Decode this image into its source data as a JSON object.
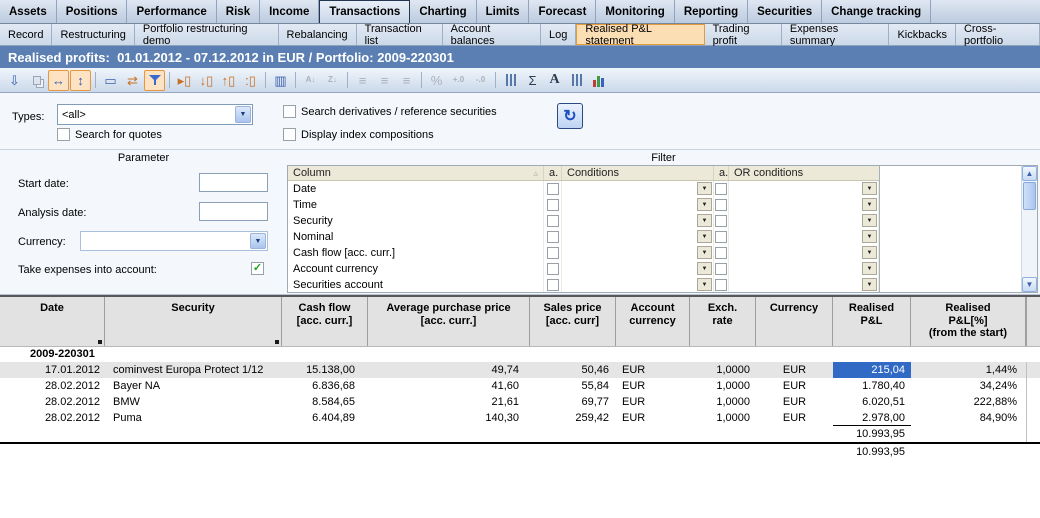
{
  "menu_bar": {
    "items": [
      {
        "label": "Assets",
        "selected": false
      },
      {
        "label": "Positions",
        "selected": false
      },
      {
        "label": "Performance",
        "selected": false
      },
      {
        "label": "Risk",
        "selected": false
      },
      {
        "label": "Income",
        "selected": false
      },
      {
        "label": "Transactions",
        "selected": true
      },
      {
        "label": "Charting",
        "selected": false
      },
      {
        "label": "Limits",
        "selected": false
      },
      {
        "label": "Forecast",
        "selected": false
      },
      {
        "label": "Monitoring",
        "selected": false
      },
      {
        "label": "Reporting",
        "selected": false
      },
      {
        "label": "Securities",
        "selected": false
      },
      {
        "label": "Change tracking",
        "selected": false
      }
    ]
  },
  "subtab_bar": {
    "items": [
      {
        "label": "Record",
        "selected": false
      },
      {
        "label": "Restructuring",
        "selected": false
      },
      {
        "label": "Portfolio restructuring demo",
        "selected": false
      },
      {
        "label": "Rebalancing",
        "selected": false
      },
      {
        "label": "Transaction list",
        "selected": false
      },
      {
        "label": "Account balances",
        "selected": false
      },
      {
        "label": "Log",
        "selected": false
      },
      {
        "label": "Realised P&L statement",
        "selected": true
      },
      {
        "label": "Trading profit",
        "selected": false
      },
      {
        "label": "Expenses summary",
        "selected": false
      },
      {
        "label": "Kickbacks",
        "selected": false
      },
      {
        "label": "Cross-portfolio",
        "selected": false
      }
    ]
  },
  "title_bar": {
    "text": "Realised profits:  01.01.2012 - 07.12.2012 in EUR / Portfolio: 2009-220301"
  },
  "toolbar": {
    "icons": [
      {
        "name": "export-icon",
        "glyph": "⇩",
        "tone": "blue"
      },
      {
        "name": "copy-icon",
        "shape": "copyrect",
        "state": "disabled"
      },
      {
        "name": "fit-width-icon",
        "glyph": "↔",
        "state": "active",
        "tone": "blue"
      },
      {
        "name": "fit-height-icon",
        "glyph": "↕",
        "state": "active",
        "tone": "blue"
      },
      {
        "type": "sep"
      },
      {
        "name": "new-window-icon",
        "glyph": "▭",
        "tone": "blue"
      },
      {
        "name": "sync-icon",
        "glyph": "⇄",
        "tone": "orange"
      },
      {
        "name": "filter-icon",
        "shape": "funnel",
        "state": "active"
      },
      {
        "type": "sep"
      },
      {
        "name": "add-column-icon",
        "glyph": "▸▯",
        "tone": "orange"
      },
      {
        "name": "insert-column-icon",
        "glyph": "↓▯",
        "tone": "orange"
      },
      {
        "name": "move-column-icon",
        "glyph": "↑▯",
        "tone": "orange"
      },
      {
        "name": "column-options-icon",
        "glyph": ":▯",
        "tone": "orange"
      },
      {
        "type": "sep"
      },
      {
        "name": "freeze-column-icon",
        "glyph": "▥",
        "tone": "blue"
      },
      {
        "type": "sep"
      },
      {
        "name": "sort-ascending-icon",
        "glyph": "A↓",
        "state": "disabled",
        "small": true
      },
      {
        "name": "sort-descending-icon",
        "glyph": "Z↓",
        "state": "disabled",
        "small": true
      },
      {
        "type": "sep"
      },
      {
        "name": "align-left-icon",
        "glyph": "≡",
        "state": "disabled"
      },
      {
        "name": "align-center-icon",
        "glyph": "≡",
        "state": "disabled"
      },
      {
        "name": "align-right-icon",
        "glyph": "≡",
        "state": "disabled"
      },
      {
        "type": "sep"
      },
      {
        "name": "percent-icon",
        "glyph": "%",
        "state": "disabled"
      },
      {
        "name": "add-decimal-icon",
        "glyph": "+.0",
        "state": "disabled",
        "small": true
      },
      {
        "name": "remove-decimal-icon",
        "glyph": "-.0",
        "state": "disabled",
        "small": true
      },
      {
        "type": "sep"
      },
      {
        "name": "sliders-icon",
        "shape": "sliders"
      },
      {
        "name": "sum-icon",
        "glyph": "Σ",
        "tone": "dark"
      },
      {
        "name": "font-icon",
        "glyph": "A",
        "tone": "dark",
        "serif": true
      },
      {
        "name": "settings-icon",
        "shape": "sliders"
      },
      {
        "name": "bar-chart-icon",
        "shape": "bars"
      }
    ]
  },
  "form": {
    "types_label": "Types:",
    "types_value": "<all>",
    "search_quotes_label": "Search for quotes",
    "search_quotes_checked": false,
    "search_derivatives_label": "Search derivatives / reference securities",
    "search_derivatives_checked": false,
    "display_index_label": "Display index compositions",
    "display_index_checked": false
  },
  "parameter": {
    "title": "Parameter",
    "start_date_label": "Start date:",
    "start_date_value": "",
    "analysis_date_label": "Analysis date:",
    "analysis_date_value": "",
    "currency_label": "Currency:",
    "currency_value": "",
    "expenses_label": "Take expenses into account:",
    "expenses_checked": true
  },
  "filter": {
    "title": "Filter",
    "headers": [
      "Column",
      "a.",
      "Conditions",
      "a.",
      "OR conditions"
    ],
    "rows": [
      {
        "column": "Date"
      },
      {
        "column": "Time"
      },
      {
        "column": "Security"
      },
      {
        "column": "Nominal"
      },
      {
        "column": "Cash flow [acc. curr.]"
      },
      {
        "column": "Account currency"
      },
      {
        "column": "Securities account"
      }
    ]
  },
  "table": {
    "columns": [
      {
        "label": "Date",
        "sorted": true
      },
      {
        "label": "Security",
        "sorted": true
      },
      {
        "label": "Cash flow\n[acc. curr.]",
        "sorted": false
      },
      {
        "label": "Average purchase price\n[acc. curr.]",
        "sorted": false
      },
      {
        "label": "Sales price\n[acc. curr]",
        "sorted": false
      },
      {
        "label": "Account\ncurrency",
        "sorted": false
      },
      {
        "label": "Exch.\nrate",
        "sorted": false
      },
      {
        "label": "Currency",
        "sorted": false
      },
      {
        "label": "Realised\nP&L",
        "sorted": false
      },
      {
        "label": "Realised\nP&L[%]\n(from the start)",
        "sorted": false
      }
    ],
    "group_label": "2009-220301",
    "rows": [
      {
        "date": "17.01.2012",
        "security": "cominvest Europa Protect 1/12",
        "cash_flow": "15.138,00",
        "avg_purchase_price": "49,74",
        "sales_price": "50,46",
        "account_currency": "EUR",
        "exch_rate": "1,0000",
        "currency": "EUR",
        "realised_pnl": "215,04",
        "realised_pnl_pct": "1,44%",
        "row_selected": true,
        "pnl_cell_selected": true
      },
      {
        "date": "28.02.2012",
        "security": "Bayer NA",
        "cash_flow": "6.836,68",
        "avg_purchase_price": "41,60",
        "sales_price": "55,84",
        "account_currency": "EUR",
        "exch_rate": "1,0000",
        "currency": "EUR",
        "realised_pnl": "1.780,40",
        "realised_pnl_pct": "34,24%",
        "row_selected": false,
        "pnl_cell_selected": false
      },
      {
        "date": "28.02.2012",
        "security": "BMW",
        "cash_flow": "8.584,65",
        "avg_purchase_price": "21,61",
        "sales_price": "69,77",
        "account_currency": "EUR",
        "exch_rate": "1,0000",
        "currency": "EUR",
        "realised_pnl": "6.020,51",
        "realised_pnl_pct": "222,88%",
        "row_selected": false,
        "pnl_cell_selected": false
      },
      {
        "date": "28.02.2012",
        "security": "Puma",
        "cash_flow": "6.404,89",
        "avg_purchase_price": "140,30",
        "sales_price": "259,42",
        "account_currency": "EUR",
        "exch_rate": "1,0000",
        "currency": "EUR",
        "realised_pnl": "2.978,00",
        "realised_pnl_pct": "84,90%",
        "row_selected": false,
        "pnl_cell_selected": false,
        "pnl_underline": true
      }
    ],
    "group_total": "10.993,95",
    "grand_total": "10.993,95"
  },
  "colors": {
    "title_bar_blue": "#5b7fb2",
    "selection_blue": "#316ac5",
    "active_tab_orange": "#fcdeb5",
    "active_tab_border": "#e39b40",
    "filter_header_beige": "#ece9d8",
    "selected_row_gray": "#e5e5e5"
  }
}
